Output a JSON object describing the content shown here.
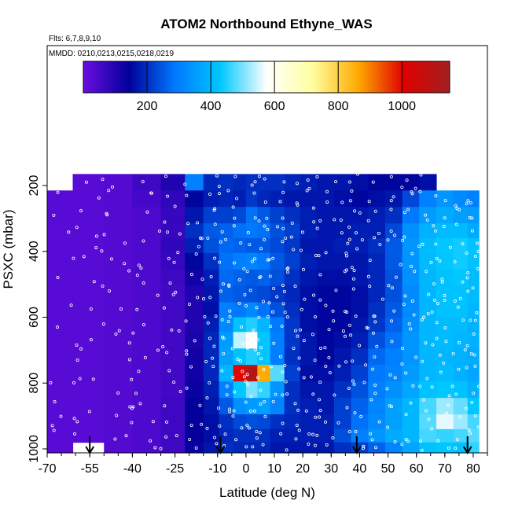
{
  "chart_data": {
    "type": "heatmap",
    "title": "ATOM2 Northbound Ethyne_WAS",
    "subtitle_flights": "Flts: 6,7,8,9,10",
    "subtitle_dates": "MMDD: 0210,0213,0215,0218,0219",
    "xlabel": "Latitude (deg N)",
    "ylabel": "PSXC (mbar)",
    "xlim": [
      -70,
      85
    ],
    "ylim": [
      1000,
      100
    ],
    "x_ticks": [
      -70,
      -55,
      -40,
      -25,
      -10,
      0,
      10,
      20,
      30,
      40,
      50,
      60,
      70,
      80
    ],
    "x_tick_labels": [
      "-70",
      "-55",
      "-40",
      "-25",
      "-10",
      "0",
      "10",
      "20",
      "30",
      "40",
      "50",
      "60",
      "70",
      "80"
    ],
    "y_ticks": [
      200,
      400,
      600,
      800,
      1000
    ],
    "y_tick_labels": [
      "200",
      "400",
      "600",
      "800",
      "1000"
    ],
    "colorbar": {
      "range": [
        0,
        1150
      ],
      "ticks": [
        200,
        400,
        600,
        800,
        1000
      ],
      "tick_labels": [
        "200",
        "400",
        "600",
        "800",
        "1000"
      ],
      "colors": [
        "#6a0de0",
        "#00009a",
        "#0078ff",
        "#00c8ff",
        "#ffffff",
        "#ffffa0",
        "#ffaa00",
        "#e00000",
        "#a02020"
      ]
    },
    "pressure_levels": [
      190,
      240,
      290,
      340,
      380,
      430,
      480,
      530,
      580,
      620,
      670,
      720,
      770,
      820,
      870,
      920,
      960,
      1000
    ],
    "latitude_profiles": [
      {
        "lat": -67,
        "values": [
          null,
          25,
          25,
          20,
          25,
          25,
          25,
          25,
          25,
          25,
          25,
          25,
          25,
          25,
          25,
          25,
          25,
          25
        ]
      },
      {
        "lat": -55,
        "values": [
          25,
          25,
          25,
          25,
          25,
          25,
          25,
          25,
          25,
          25,
          25,
          25,
          25,
          25,
          25,
          25,
          25,
          null
        ]
      },
      {
        "lat": -45,
        "values": [
          30,
          30,
          30,
          30,
          30,
          30,
          30,
          30,
          30,
          30,
          30,
          30,
          30,
          30,
          30,
          30,
          30,
          30
        ]
      },
      {
        "lat": -35,
        "values": [
          60,
          50,
          40,
          40,
          40,
          40,
          40,
          40,
          40,
          40,
          40,
          40,
          40,
          40,
          40,
          40,
          40,
          40
        ]
      },
      {
        "lat": -25,
        "values": [
          100,
          80,
          70,
          70,
          80,
          70,
          60,
          55,
          55,
          55,
          55,
          55,
          55,
          55,
          60,
          60,
          60,
          60
        ]
      },
      {
        "lat": -18,
        "values": [
          300,
          150,
          170,
          200,
          180,
          150,
          120,
          100,
          100,
          100,
          110,
          120,
          120,
          130,
          140,
          140,
          140,
          130
        ]
      },
      {
        "lat": -12,
        "values": [
          190,
          180,
          220,
          250,
          240,
          200,
          180,
          170,
          160,
          180,
          190,
          190,
          190,
          180,
          170,
          160,
          160,
          170
        ]
      },
      {
        "lat": -7,
        "values": [
          200,
          190,
          220,
          260,
          270,
          280,
          270,
          260,
          300,
          320,
          350,
          360,
          400,
          300,
          250,
          200,
          190,
          200
        ]
      },
      {
        "lat": -2,
        "values": [
          190,
          180,
          230,
          280,
          260,
          300,
          260,
          250,
          290,
          420,
          540,
          420,
          1000,
          430,
          330,
          230,
          200,
          190
        ]
      },
      {
        "lat": 2,
        "values": [
          200,
          210,
          280,
          290,
          250,
          310,
          250,
          240,
          320,
          450,
          580,
          450,
          1100,
          500,
          350,
          240,
          200,
          190
        ]
      },
      {
        "lat": 6,
        "values": [
          200,
          190,
          250,
          280,
          250,
          290,
          260,
          230,
          280,
          400,
          430,
          430,
          860,
          460,
          360,
          230,
          200,
          190
        ]
      },
      {
        "lat": 11,
        "values": [
          200,
          180,
          220,
          240,
          230,
          250,
          240,
          210,
          240,
          290,
          300,
          300,
          480,
          340,
          310,
          200,
          180,
          170
        ]
      },
      {
        "lat": 16,
        "values": [
          190,
          170,
          200,
          220,
          210,
          220,
          200,
          190,
          200,
          210,
          210,
          200,
          220,
          200,
          200,
          190,
          180,
          170
        ]
      },
      {
        "lat": 22,
        "values": [
          180,
          170,
          180,
          180,
          170,
          180,
          170,
          160,
          160,
          160,
          170,
          170,
          160,
          170,
          180,
          180,
          180,
          170
        ]
      },
      {
        "lat": 28,
        "values": [
          170,
          170,
          170,
          170,
          170,
          170,
          160,
          150,
          150,
          150,
          150,
          150,
          160,
          170,
          170,
          180,
          180,
          170
        ]
      },
      {
        "lat": 34,
        "values": [
          170,
          160,
          170,
          170,
          180,
          170,
          160,
          150,
          150,
          150,
          160,
          170,
          180,
          200,
          220,
          220,
          240,
          200
        ]
      },
      {
        "lat": 40,
        "values": [
          160,
          150,
          170,
          180,
          180,
          170,
          170,
          160,
          160,
          170,
          180,
          200,
          220,
          240,
          260,
          280,
          300,
          220
        ]
      },
      {
        "lat": 46,
        "values": [
          150,
          160,
          180,
          180,
          200,
          190,
          190,
          190,
          200,
          210,
          240,
          270,
          290,
          300,
          310,
          320,
          340,
          260
        ]
      },
      {
        "lat": 52,
        "values": [
          150,
          170,
          200,
          230,
          250,
          250,
          240,
          240,
          250,
          260,
          280,
          300,
          310,
          330,
          360,
          360,
          380,
          310
        ]
      },
      {
        "lat": 58,
        "values": [
          150,
          230,
          290,
          330,
          340,
          340,
          330,
          320,
          320,
          330,
          340,
          340,
          350,
          370,
          400,
          400,
          400,
          370
        ]
      },
      {
        "lat": 64,
        "values": [
          160,
          300,
          350,
          390,
          410,
          410,
          400,
          400,
          400,
          400,
          400,
          400,
          400,
          420,
          470,
          480,
          470,
          420
        ]
      },
      {
        "lat": 70,
        "values": [
          null,
          340,
          380,
          410,
          430,
          430,
          420,
          420,
          420,
          410,
          410,
          400,
          410,
          430,
          520,
          560,
          460,
          430
        ]
      },
      {
        "lat": 76,
        "values": [
          null,
          320,
          360,
          410,
          440,
          440,
          430,
          420,
          420,
          410,
          400,
          390,
          390,
          420,
          490,
          520,
          470,
          420
        ]
      },
      {
        "lat": 80,
        "values": [
          null,
          300,
          350,
          380,
          420,
          420,
          410,
          410,
          400,
          390,
          390,
          380,
          370,
          390,
          430,
          470,
          480,
          460
        ]
      }
    ],
    "sample_markers": [
      {
        "lat": -55,
        "p": 1000
      },
      {
        "lat": -9,
        "p": 1000
      },
      {
        "lat": 39,
        "p": 1000
      },
      {
        "lat": 78,
        "p": 1000
      }
    ]
  }
}
